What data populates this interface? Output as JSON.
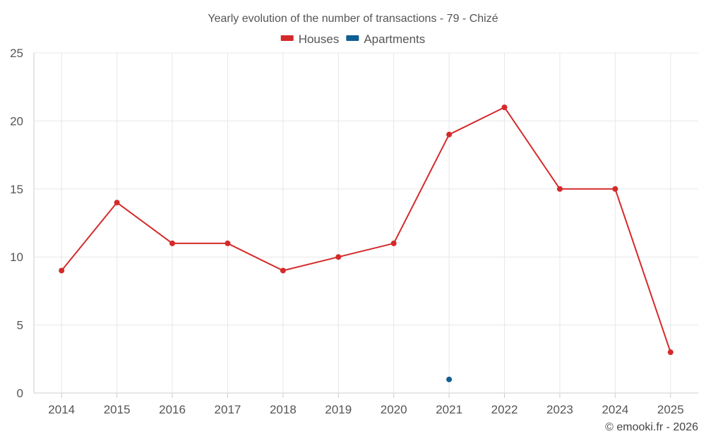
{
  "chart_data": {
    "type": "line",
    "title": "Yearly evolution of the number of transactions - 79 - Chizé",
    "categories": [
      "2014",
      "2015",
      "2016",
      "2017",
      "2018",
      "2019",
      "2020",
      "2021",
      "2022",
      "2023",
      "2024",
      "2025"
    ],
    "series": [
      {
        "name": "Houses",
        "color": "#d42a2a",
        "values": [
          9,
          14,
          11,
          11,
          9,
          10,
          11,
          19,
          21,
          15,
          15,
          3
        ]
      },
      {
        "name": "Apartments",
        "color": "#0f5e94",
        "values": [
          null,
          null,
          null,
          null,
          null,
          null,
          null,
          1,
          null,
          null,
          null,
          null
        ]
      }
    ],
    "ylim": [
      0,
      25
    ],
    "yticks": [
      0,
      5,
      10,
      15,
      20,
      25
    ],
    "grid": true,
    "legend_position": "top-center",
    "xlabel": "",
    "ylabel": ""
  },
  "credit": "© emooki.fr - 2026"
}
